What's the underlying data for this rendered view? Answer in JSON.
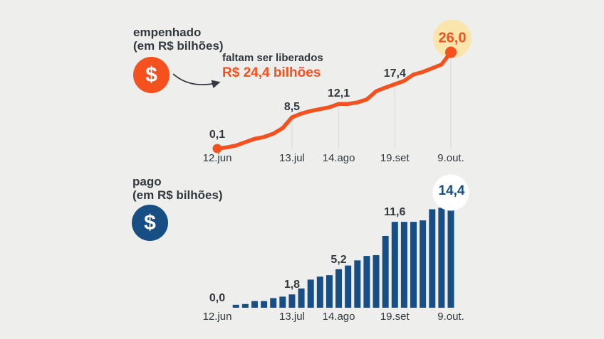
{
  "page": {
    "background": "#EEEFED"
  },
  "colors": {
    "orange": "#F4511E",
    "navy": "#174E84",
    "halo_yellow": "#FAE5AD",
    "highlight_white": "#FFFFFF",
    "text_dark": "#32383E",
    "gridline": "#DBDBD9"
  },
  "empenhado": {
    "title_line1": "empenhado",
    "title_line2": "(em R$ bilhões)",
    "icon": "dollar-icon",
    "icon_symbol": "$",
    "annotation_line1": "faltam ser liberados",
    "annotation_line2": "R$ 24,4 bilhões"
  },
  "pago": {
    "title_line1": "pago",
    "title_line2": "(em R$ bilhões)",
    "icon": "dollar-icon",
    "icon_symbol": "$"
  },
  "chart_data": [
    {
      "name": "empenhado",
      "type": "line",
      "unit": "R$ bilhões",
      "title": "empenhado (em R$ bilhões)",
      "ylim": [
        0,
        26
      ],
      "grid": "vertical-droplines",
      "x_tick_labels": [
        "12.jun",
        "13.jul",
        "14.ago",
        "19.set",
        "9.out."
      ],
      "x_tick_indices": [
        0,
        8,
        13,
        19,
        25
      ],
      "values": [
        0.1,
        0.4,
        0.9,
        1.8,
        2.7,
        3.2,
        4.1,
        5.6,
        8.5,
        9.5,
        10.2,
        10.7,
        11.2,
        12.1,
        12.1,
        12.5,
        13.3,
        15.5,
        16.5,
        17.4,
        18.3,
        20.0,
        20.7,
        21.7,
        22.7,
        26.0
      ],
      "point_labels": [
        {
          "index": 0,
          "text": "0,1"
        },
        {
          "index": 8,
          "text": "8,5"
        },
        {
          "index": 13,
          "text": "12,1"
        },
        {
          "index": 19,
          "text": "17,4"
        },
        {
          "index": 25,
          "text": "26,0",
          "highlight": true
        }
      ]
    },
    {
      "name": "pago",
      "type": "bar",
      "unit": "R$ bilhões",
      "title": "pago (em R$ bilhões)",
      "ylim": [
        0,
        14.4
      ],
      "grid": "off",
      "x_tick_labels": [
        "12.jun",
        "13.jul",
        "14.ago",
        "19.set",
        "9.out."
      ],
      "x_tick_indices": [
        0,
        8,
        13,
        19,
        25
      ],
      "values": [
        0.0,
        0.0,
        0.4,
        0.5,
        0.9,
        0.9,
        1.3,
        1.5,
        1.8,
        2.6,
        3.8,
        4.2,
        4.4,
        5.2,
        5.7,
        6.4,
        7.0,
        7.1,
        9.7,
        11.6,
        11.6,
        11.6,
        11.8,
        13.3,
        13.5,
        14.4
      ],
      "point_labels": [
        {
          "index": 0,
          "text": "0,0"
        },
        {
          "index": 8,
          "text": "1,8"
        },
        {
          "index": 13,
          "text": "5,2"
        },
        {
          "index": 19,
          "text": "11,6"
        },
        {
          "index": 25,
          "text": "14,4",
          "highlight": true
        }
      ]
    }
  ]
}
